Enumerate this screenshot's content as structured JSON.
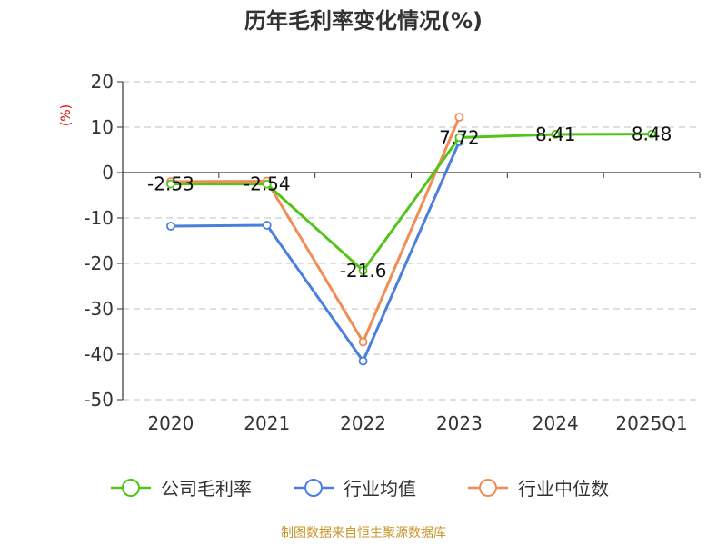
{
  "chart_data": {
    "type": "line",
    "title": "历年毛利率变化情况(%)",
    "ylabel": "(%)",
    "categories": [
      "2020",
      "2021",
      "2022",
      "2023",
      "2024",
      "2025Q1"
    ],
    "yticks": [
      "20",
      "10",
      "0",
      "-10",
      "-20",
      "-30",
      "-40",
      "-50"
    ],
    "ylim": [
      -50,
      20
    ],
    "grid": true,
    "legend_position": "bottom",
    "series": [
      {
        "name": "公司毛利率",
        "color": "#52c41a",
        "values": [
          -2.53,
          -2.54,
          -21.6,
          7.72,
          8.41,
          8.48
        ],
        "labels": [
          "-2.53",
          "-2.54",
          "-21.6",
          "7.72",
          "8.41",
          "8.48"
        ]
      },
      {
        "name": "行业均值",
        "color": "#4a7fdc",
        "values": [
          -11.8,
          -11.6,
          -41.5,
          6.8,
          null,
          null
        ]
      },
      {
        "name": "行业中位数",
        "color": "#f28c55",
        "values": [
          -2.0,
          -1.9,
          -37.3,
          12.2,
          null,
          null
        ]
      }
    ]
  },
  "footer": {
    "source": "制图数据来自恒生聚源数据库"
  }
}
